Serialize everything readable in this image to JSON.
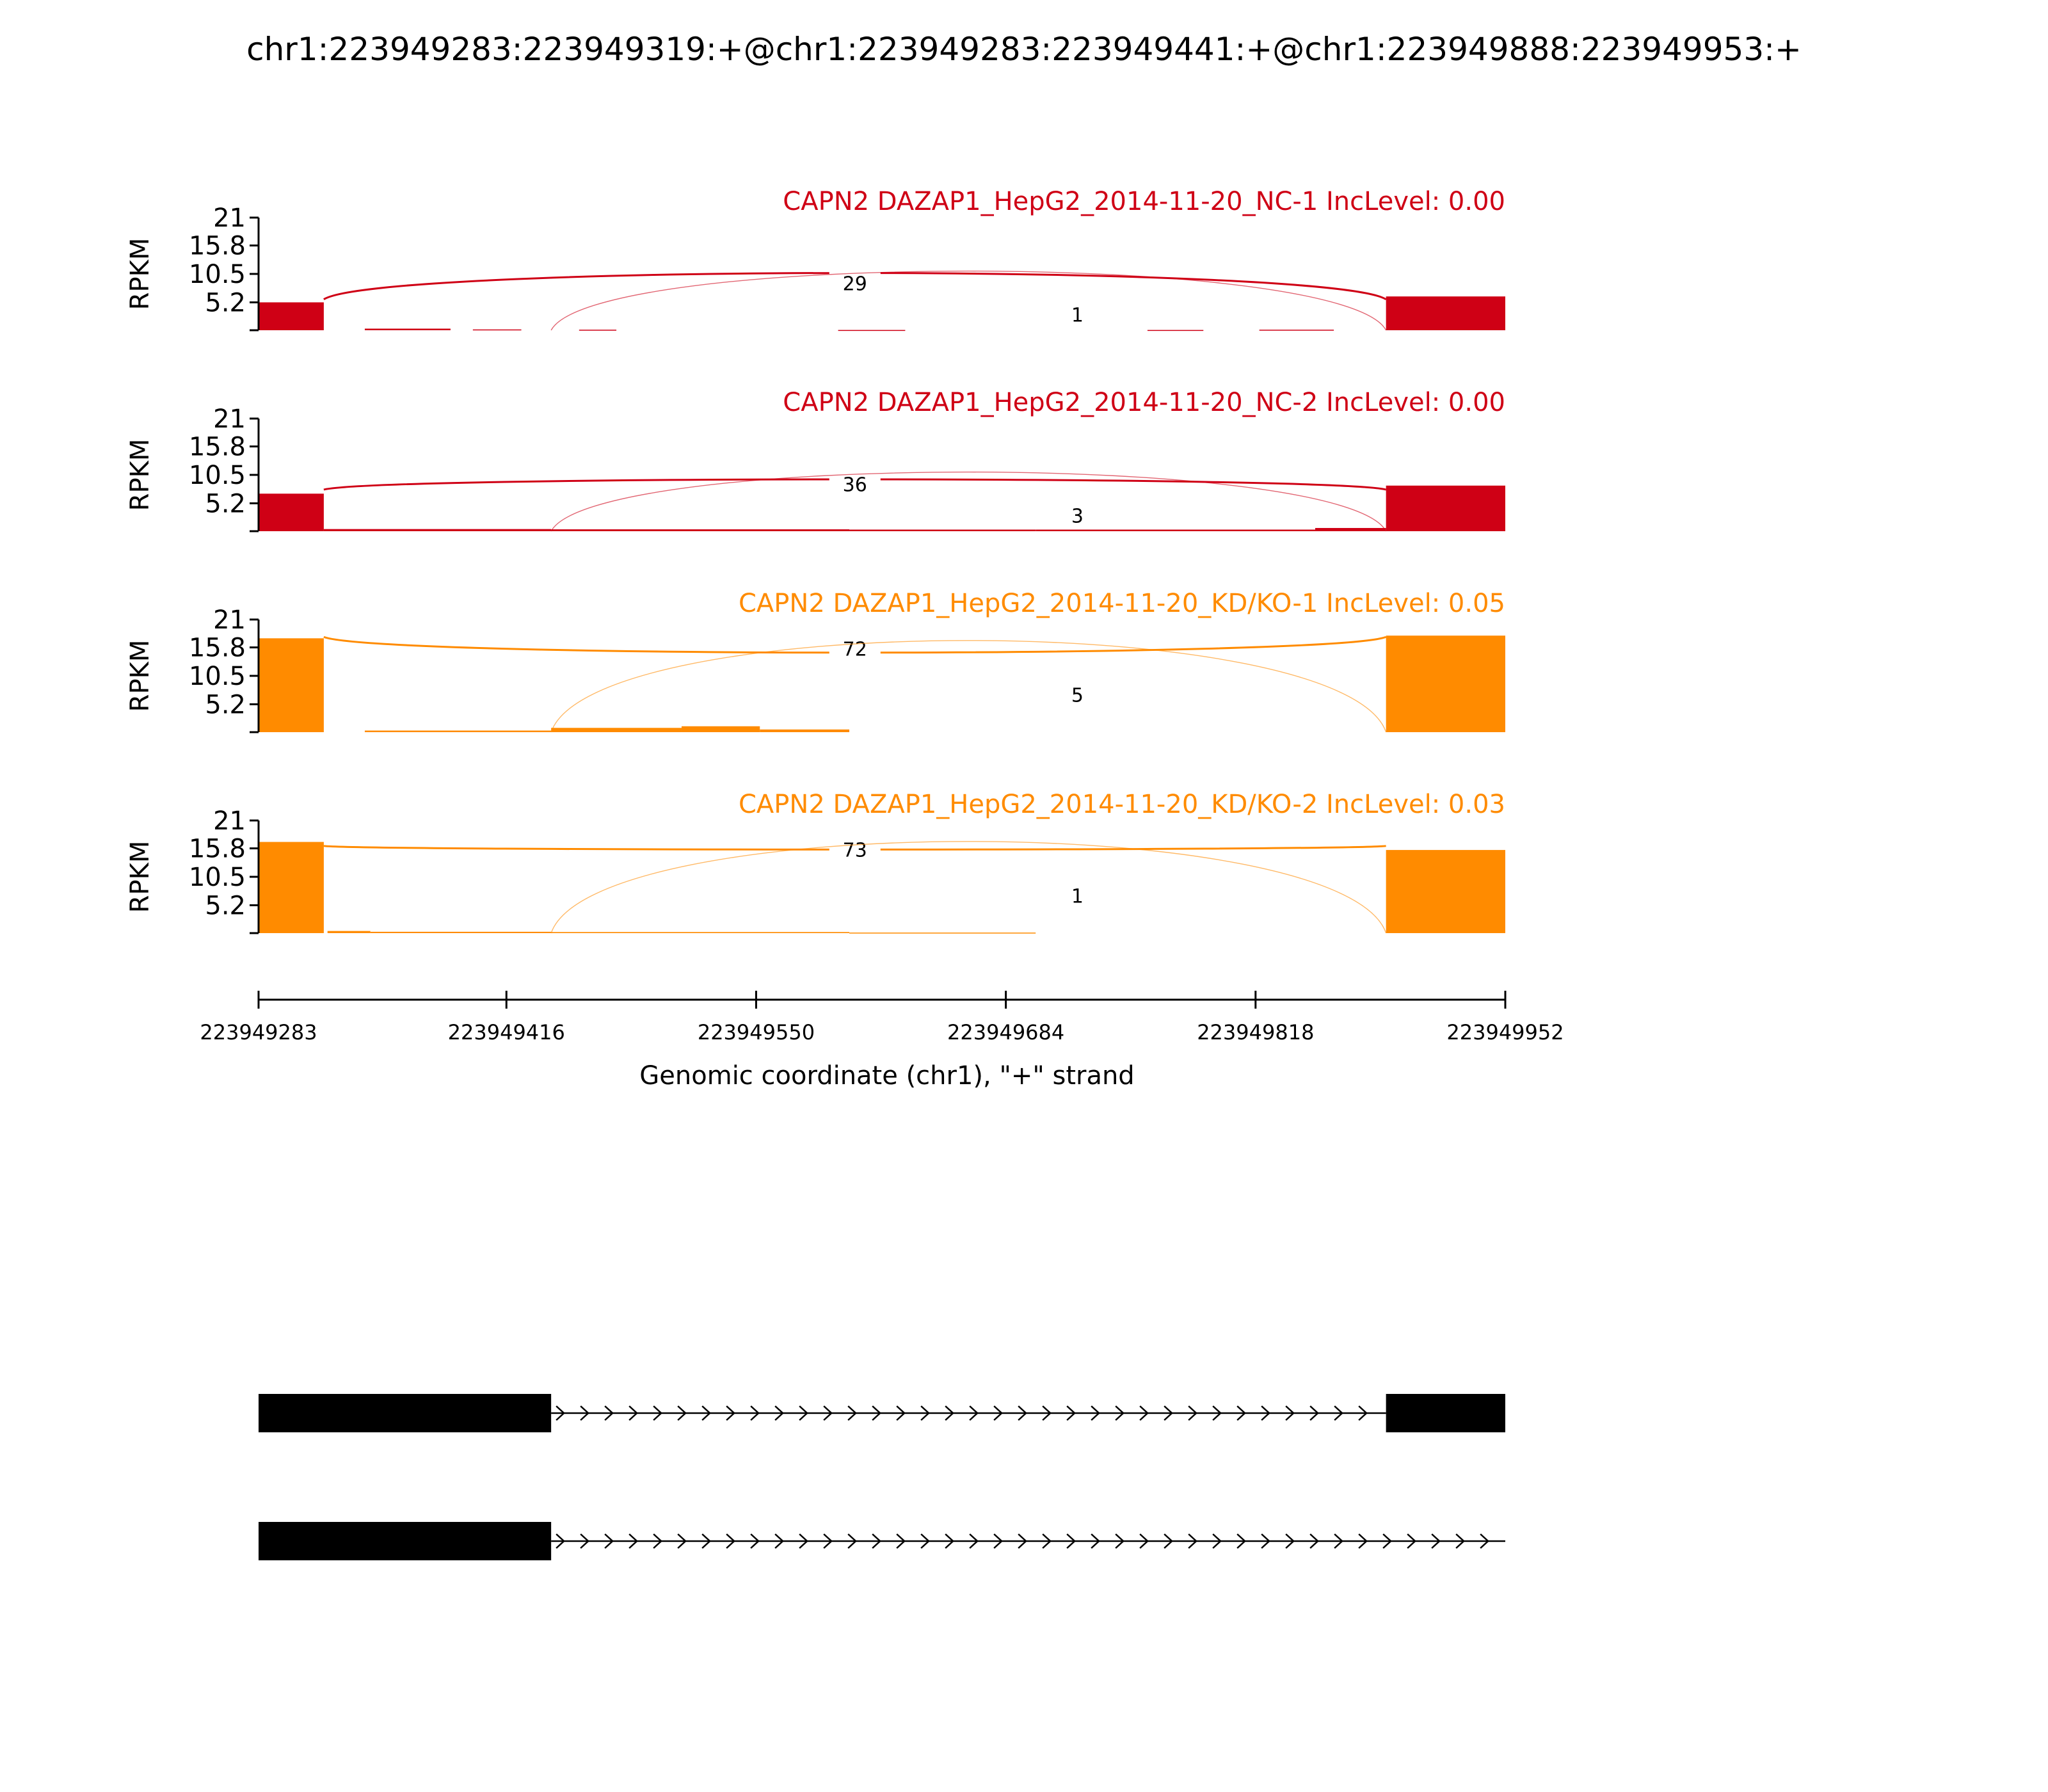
{
  "title": "chr1:223949283:223949319:+@chr1:223949283:223949441:+@chr1:223949888:223949953:+",
  "colors": {
    "nc": "#cf0015",
    "kd": "#ff8b00",
    "axis": "#000000"
  },
  "chart_data": {
    "type": "area",
    "ylabel": "RPKM",
    "xlabel": "Genomic coordinate (chr1), \"+\" strand",
    "xlim": [
      223949283,
      223949952
    ],
    "xticks": [
      "223949283",
      "223949416",
      "223949550",
      "223949684",
      "223949818",
      "223949952"
    ],
    "ylim": [
      0,
      21
    ],
    "yticks": [
      "21",
      "15.8",
      "10.5",
      "5.2"
    ],
    "exon_regions": {
      "upstream": [
        223949283,
        223949318
      ],
      "middle": [
        223949319,
        223949440
      ],
      "downstream": [
        223949888,
        223949952
      ]
    },
    "tracks": [
      {
        "label": "CAPN2 DAZAP1_HepG2_2014-11-20_NC-1 IncLevel: 0.00",
        "group": "nc",
        "coverage": [
          [
            223949283,
            223949318,
            5.2
          ],
          [
            223949340,
            223949386,
            0.3
          ],
          [
            223949398,
            223949424,
            0.15
          ],
          [
            223949455,
            223949475,
            0.1
          ],
          [
            223949594,
            223949630,
            0.05
          ],
          [
            223949760,
            223949790,
            0.05
          ],
          [
            223949820,
            223949860,
            0.1
          ],
          [
            223949888,
            223949952,
            6.3
          ]
        ],
        "junctions": [
          {
            "start": 223949318,
            "end": 223949888,
            "count": "29"
          },
          {
            "start": 223949440,
            "end": 223949888,
            "count": "1"
          }
        ]
      },
      {
        "label": "CAPN2 DAZAP1_HepG2_2014-11-20_NC-2 IncLevel: 0.00",
        "group": "nc",
        "coverage": [
          [
            223949283,
            223949318,
            7.0
          ],
          [
            223949318,
            223949440,
            0.4
          ],
          [
            223949440,
            223949600,
            0.35
          ],
          [
            223949600,
            223949700,
            0.3
          ],
          [
            223949700,
            223949850,
            0.3
          ],
          [
            223949850,
            223949888,
            0.6
          ],
          [
            223949888,
            223949952,
            8.5
          ]
        ],
        "junctions": [
          {
            "start": 223949318,
            "end": 223949888,
            "count": "36"
          },
          {
            "start": 223949440,
            "end": 223949888,
            "count": "3"
          }
        ]
      },
      {
        "label": "CAPN2 DAZAP1_HepG2_2014-11-20_KD/KO-1 IncLevel: 0.05",
        "group": "kd",
        "coverage": [
          [
            223949283,
            223949318,
            17.5
          ],
          [
            223949340,
            223949440,
            0.3
          ],
          [
            223949440,
            223949510,
            0.8
          ],
          [
            223949510,
            223949552,
            1.1
          ],
          [
            223949552,
            223949600,
            0.5
          ],
          [
            223949888,
            223949952,
            18.0
          ]
        ],
        "junctions": [
          {
            "start": 223949318,
            "end": 223949888,
            "count": "72"
          },
          {
            "start": 223949440,
            "end": 223949888,
            "count": "5"
          }
        ]
      },
      {
        "label": "CAPN2 DAZAP1_HepG2_2014-11-20_KD/KO-2 IncLevel: 0.03",
        "group": "kd",
        "coverage": [
          [
            223949283,
            223949318,
            17.0
          ],
          [
            223949320,
            223949343,
            0.4
          ],
          [
            223949343,
            223949440,
            0.25
          ],
          [
            223949440,
            223949600,
            0.2
          ],
          [
            223949600,
            223949700,
            0.1
          ],
          [
            223949888,
            223949952,
            15.5
          ]
        ],
        "junctions": [
          {
            "start": 223949318,
            "end": 223949888,
            "count": "73"
          },
          {
            "start": 223949440,
            "end": 223949888,
            "count": "1"
          }
        ]
      }
    ],
    "isoforms": [
      {
        "exons": [
          [
            223949283,
            223949440
          ],
          [
            223949888,
            223949952
          ]
        ],
        "intron": [
          223949440,
          223949888
        ],
        "strand": "+"
      },
      {
        "exons": [
          [
            223949283,
            223949440
          ]
        ],
        "intron": [
          223949440,
          223949952
        ],
        "strand": "+"
      }
    ]
  }
}
